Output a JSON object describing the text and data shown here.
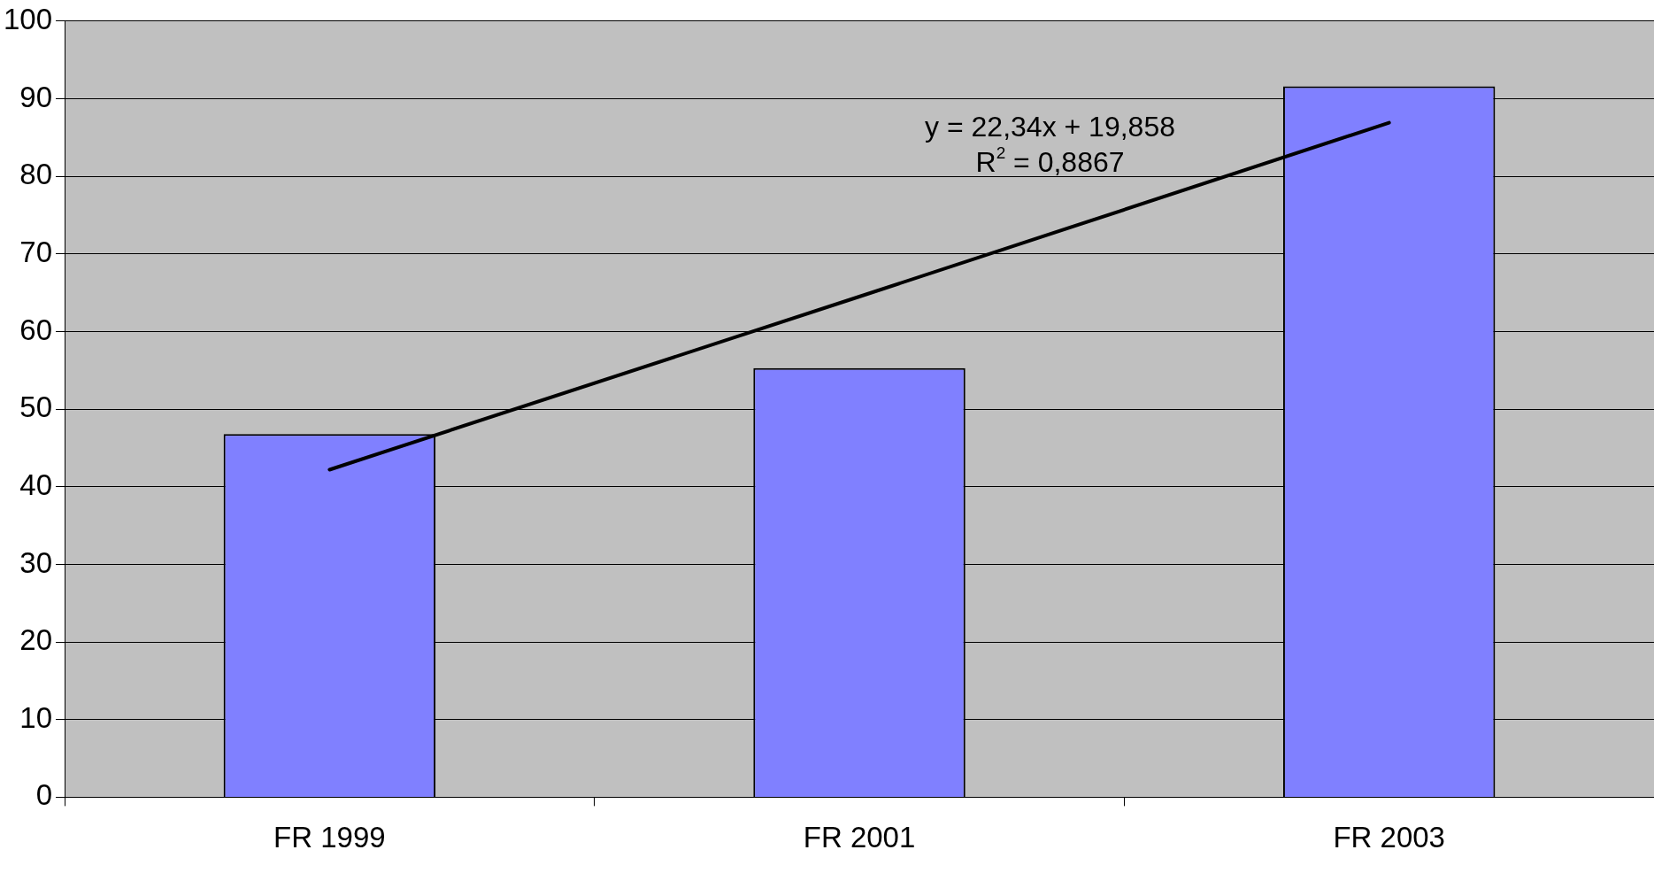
{
  "chart_data": {
    "type": "bar",
    "categories": [
      "FR 1999",
      "FR 2001",
      "FR 2003"
    ],
    "series": [
      {
        "color": "#8080ff",
        "values": [
          46.8,
          55.3,
          91.6
        ]
      },
      {
        "type": "line",
        "color": "#000000",
        "x": [
          "FR 1999",
          "FR 2001",
          "FR 2003"
        ],
        "values": [
          42.2,
          64.5,
          86.9
        ]
      }
    ],
    "ylim": [
      0,
      100
    ],
    "yticks": [
      0,
      10,
      20,
      30,
      40,
      50,
      60,
      70,
      80,
      90,
      100
    ],
    "grid": "y",
    "legend": false,
    "marker": "none",
    "annotations": [
      "y = 22,34x + 19,858",
      "R$^{2}$ = 0,8867"
    ]
  }
}
